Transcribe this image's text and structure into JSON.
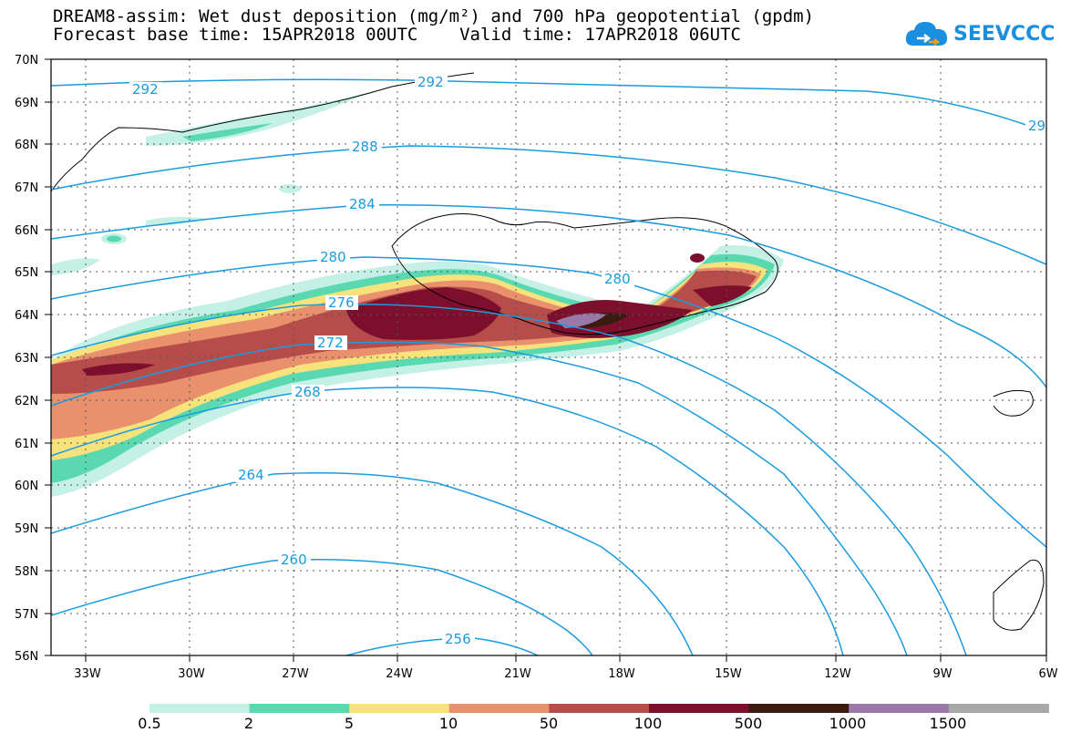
{
  "title": {
    "line1": "DREAM8-assim: Wet dust deposition (mg/m²) and 700 hPa geopotential (gpdm)",
    "line2": "Forecast base time: 15APR2018 00UTC    Valid time: 17APR2018 06UTC"
  },
  "logo": {
    "text": "SEEVCCC",
    "icon": "cloud-icon",
    "color": "#1a8fe0"
  },
  "map": {
    "lat_labels": [
      "70N",
      "69N",
      "68N",
      "67N",
      "66N",
      "65N",
      "64N",
      "63N",
      "62N",
      "61N",
      "60N",
      "59N",
      "58N",
      "57N",
      "56N"
    ],
    "lon_labels": [
      "33W",
      "30W",
      "27W",
      "24W",
      "21W",
      "18W",
      "15W",
      "12W",
      "9W",
      "6W"
    ],
    "lat_range": [
      56,
      70
    ],
    "lon_range": [
      -34.2,
      -6
    ],
    "contour_color": "#1a9be0",
    "contour_labels": [
      "292",
      "292",
      "29",
      "288",
      "284",
      "280",
      "280",
      "276",
      "272",
      "268",
      "264",
      "260",
      "256"
    ]
  },
  "colorbar": {
    "labels": [
      "0.5",
      "2",
      "5",
      "10",
      "50",
      "100",
      "500",
      "1000",
      "1500"
    ],
    "colors": [
      "#c4f0e6",
      "#5ad8b0",
      "#f7e27c",
      "#e9906c",
      "#b64d4a",
      "#7c0f2c",
      "#3b1a10",
      "#9a78a8",
      "#a8a8a8"
    ]
  }
}
